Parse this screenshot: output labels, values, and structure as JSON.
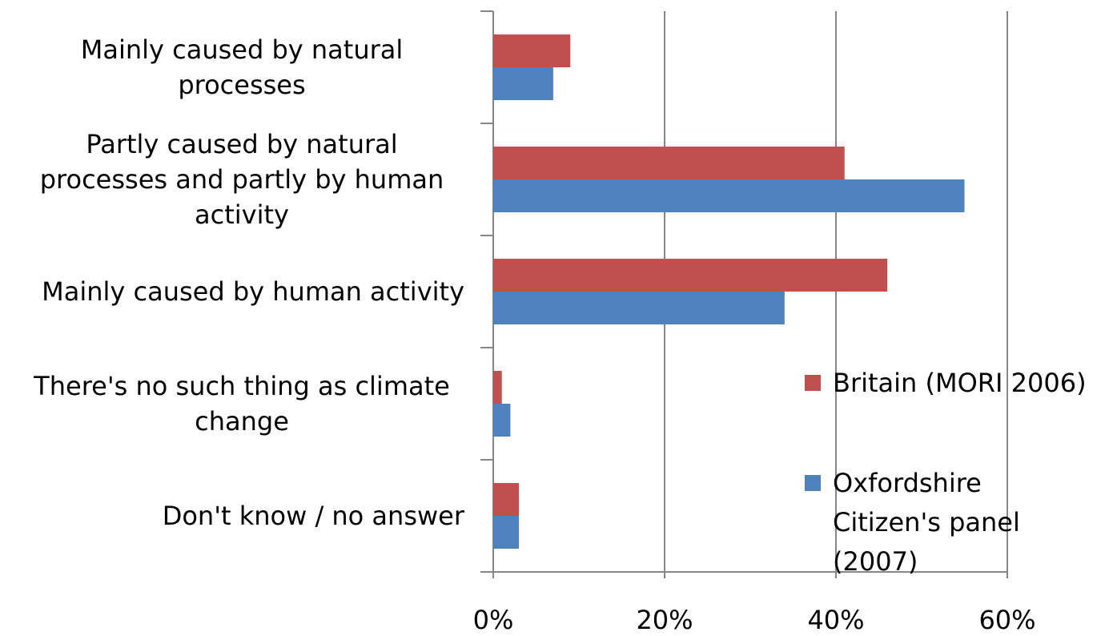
{
  "chart_data": {
    "type": "barh",
    "categories": [
      "Mainly caused by natural processes",
      "Partly caused by natural processes and partly by human activity",
      "Mainly caused by human activity",
      "There's no such thing as climate change",
      "Don't know / no answer"
    ],
    "series": [
      {
        "name": "Britain (MORI 2006)",
        "color": "#c0504d",
        "values": [
          9,
          41,
          46,
          1,
          3
        ]
      },
      {
        "name": "Oxfordshire Citizen's panel (2007)",
        "color": "#4f81bd",
        "values": [
          7,
          55,
          34,
          2,
          3
        ]
      }
    ],
    "xlim": [
      0,
      60
    ],
    "xticks": [
      {
        "value": 0,
        "label": "0%"
      },
      {
        "value": 20,
        "label": "20%"
      },
      {
        "value": 40,
        "label": "40%"
      },
      {
        "value": 60,
        "label": "60%"
      }
    ],
    "grid": true,
    "legend": "right"
  }
}
